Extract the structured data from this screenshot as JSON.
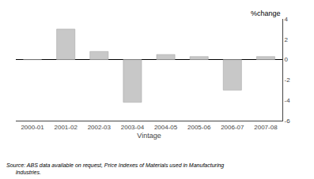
{
  "chart_data": {
    "type": "bar",
    "categories": [
      "2000-01",
      "2001-02",
      "2002-03",
      "2003-04",
      "2004-05",
      "2005-06",
      "2006-07",
      "2007-08"
    ],
    "values": [
      0.0,
      3.0,
      0.8,
      -4.2,
      0.5,
      0.3,
      -3.0,
      0.3
    ],
    "color": "#c8c8c8",
    "xlabel": "Vintage",
    "ylabel": "%change",
    "annotations": [
      "Source: ABS data available on request, Price Indexes of Materials used in Manufacturing",
      "Industries."
    ],
    "ylim": [
      -6,
      4
    ],
    "yticks": [
      -6,
      -4,
      -2,
      0,
      2,
      4
    ],
    "grid": false
  }
}
